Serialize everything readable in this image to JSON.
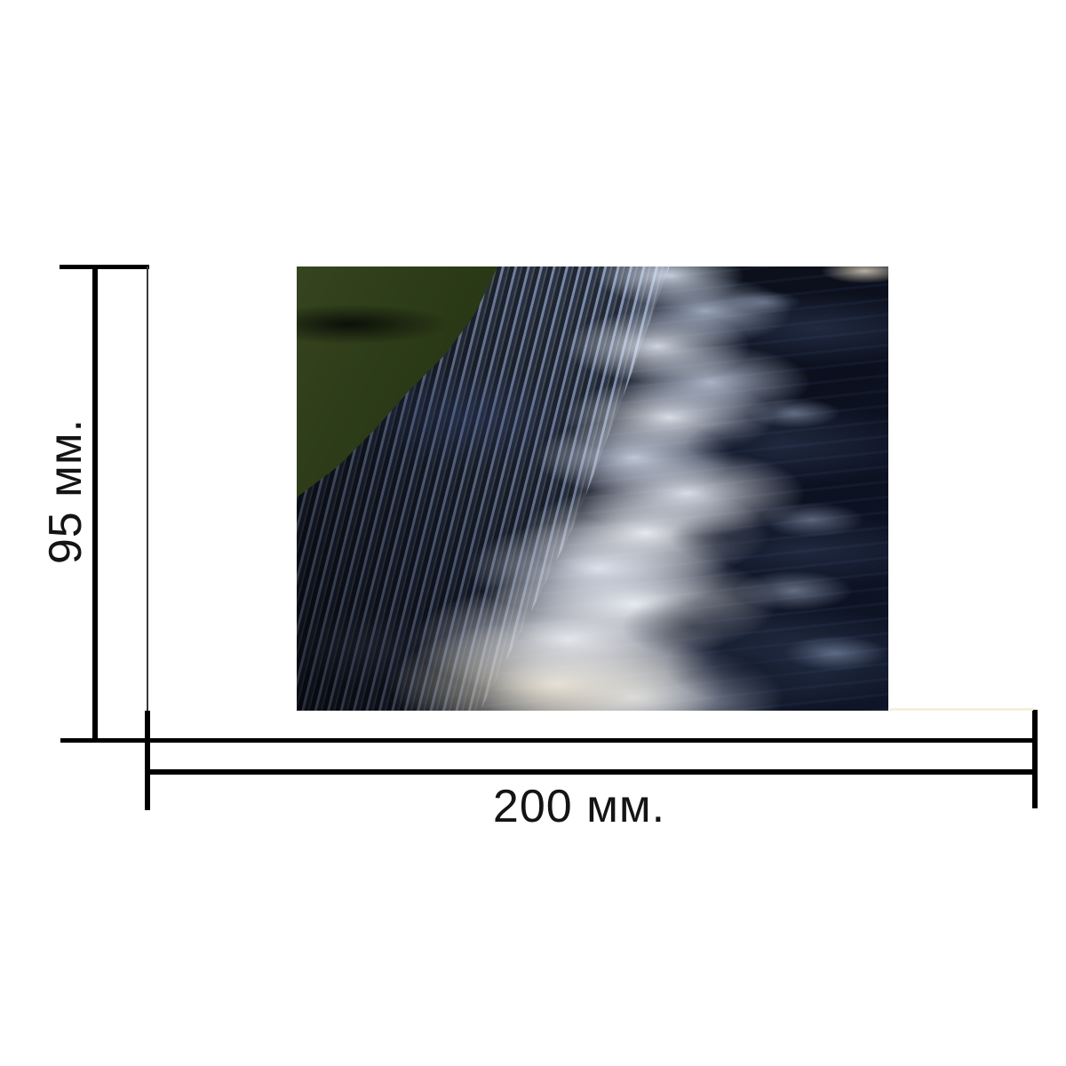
{
  "diagram": {
    "type": "product-dimension-drawing",
    "photo_subject": "waterfall cascading over a weir with white foam below",
    "height": {
      "label": "95 мм.",
      "value": 95,
      "unit": "мм"
    },
    "width": {
      "label": "200 мм.",
      "value": 200,
      "unit": "мм"
    }
  },
  "colors": {
    "bg": "#ffffff",
    "line": "#000000",
    "text": "#141414",
    "ext_line": "#3a3a3a",
    "faint_ext": "#f6efdb",
    "water_dark": "#0b0f18",
    "upstream_green": "#273614",
    "cascade_light": "#9fb0c6",
    "foam_white": "#eef2f8",
    "foam_cream": "#e6ddc6",
    "foam_blue": "#b9c9e2"
  }
}
